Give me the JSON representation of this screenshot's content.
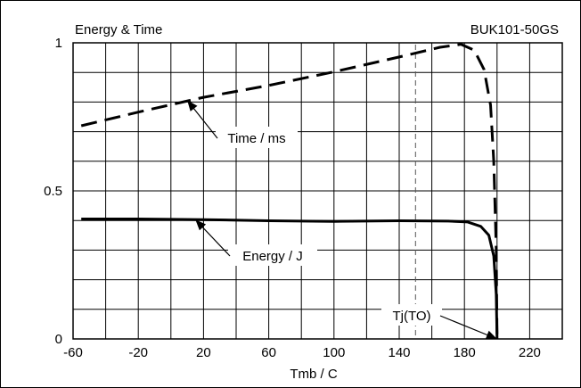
{
  "chart_data": {
    "type": "line",
    "title": "Energy & Time",
    "part_number": "BUK101-50GS",
    "xlabel": "Tmb / C",
    "ylabel": "",
    "xlim": [
      -60,
      240
    ],
    "ylim": [
      0,
      1
    ],
    "x_ticks": [
      -60,
      -20,
      20,
      60,
      100,
      140,
      180,
      220
    ],
    "x_tick_labels": [
      "-60",
      "-20",
      "20",
      "60",
      "100",
      "140",
      "180",
      "220"
    ],
    "y_ticks": [
      0,
      0.5,
      1
    ],
    "y_tick_labels": [
      "0",
      "0.5",
      "1"
    ],
    "grid": true,
    "x_grid_step": 20,
    "y_grid_step": 0.1,
    "series": [
      {
        "name": "Time / ms",
        "style": "dashed",
        "x": [
          -55,
          -20,
          20,
          60,
          100,
          140,
          165,
          178,
          186,
          192,
          196,
          198,
          199.5,
          200
        ],
        "y": [
          0.72,
          0.766,
          0.816,
          0.856,
          0.902,
          0.952,
          0.985,
          0.995,
          0.975,
          0.91,
          0.79,
          0.6,
          0.3,
          0.0
        ]
      },
      {
        "name": "Energy / J",
        "style": "solid",
        "x": [
          -55,
          -20,
          20,
          60,
          100,
          140,
          170,
          182,
          190,
          195,
          198,
          199.5,
          200
        ],
        "y": [
          0.405,
          0.405,
          0.403,
          0.399,
          0.397,
          0.399,
          0.398,
          0.395,
          0.38,
          0.35,
          0.28,
          0.15,
          0.0
        ]
      }
    ],
    "reference_line": {
      "x": 150,
      "style": "dashed"
    },
    "annotations": [
      {
        "text": "Time / ms",
        "points_to": [
          10,
          0.806
        ]
      },
      {
        "text": "Energy / J",
        "points_to": [
          15,
          0.403
        ]
      },
      {
        "text": "Tj(TO)",
        "points_to": [
          200,
          0.0
        ]
      }
    ]
  }
}
